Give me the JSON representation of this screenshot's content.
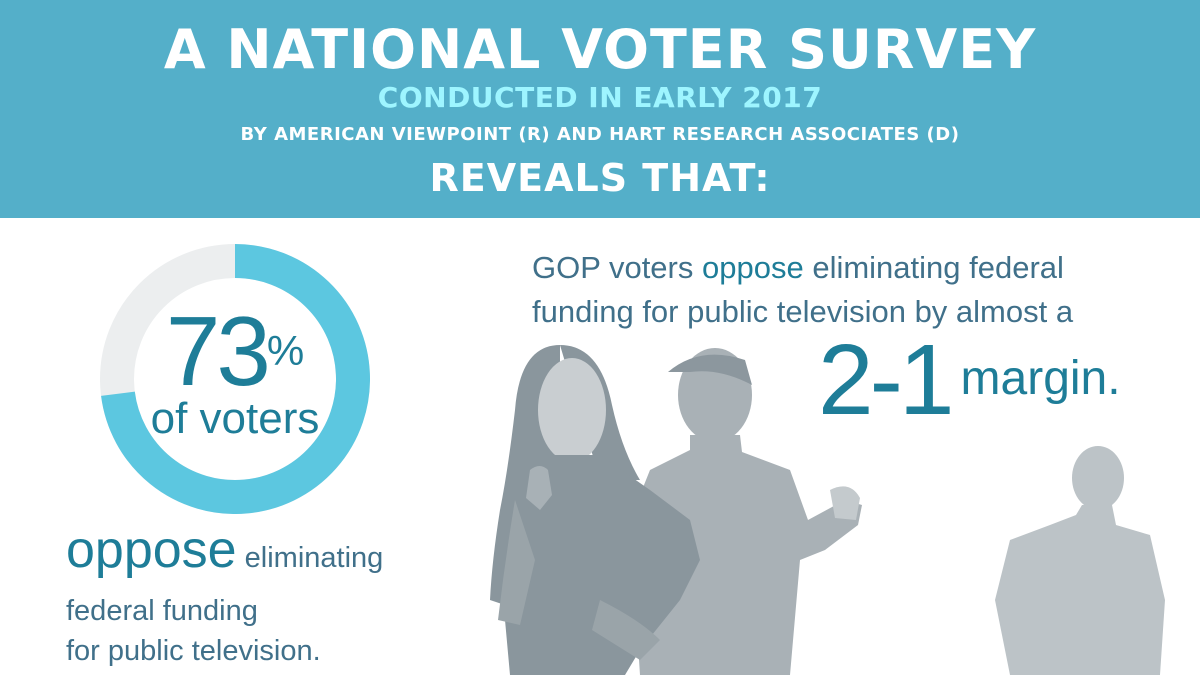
{
  "header": {
    "title": "A NATIONAL VOTER SURVEY",
    "subtitle": "CONDUCTED IN EARLY 2017",
    "byline": "BY AMERICAN VIEWPOINT (R) AND HART RESEARCH ASSOCIATES (D)",
    "reveals": "REVEALS THAT:"
  },
  "stat_left": {
    "percent_number": "73",
    "percent_sign": "%",
    "of_label": "of voters",
    "caption_highlight": "oppose",
    "caption_rest": " eliminating",
    "caption_line2": "federal funding",
    "caption_line3": "for public television."
  },
  "stat_right": {
    "line1_a": "GOP voters ",
    "line1_hl": "oppose",
    "line1_b": " eliminating federal",
    "line2": "funding for public television by almost a",
    "ratio": "2-1",
    "ratio_word": "margin."
  },
  "colors": {
    "header_bg": "#54afc9",
    "subtitle": "#9ef5ff",
    "accent": "#1e7d98",
    "ring_fill": "#5cc7e0",
    "ring_track": "#eceeef",
    "silhouette_dark": "#8c979e",
    "silhouette_light": "#b7bec3"
  },
  "chart_data": {
    "type": "pie",
    "categories": [
      "oppose eliminating federal funding"
    ],
    "values": [
      73
    ]
  }
}
